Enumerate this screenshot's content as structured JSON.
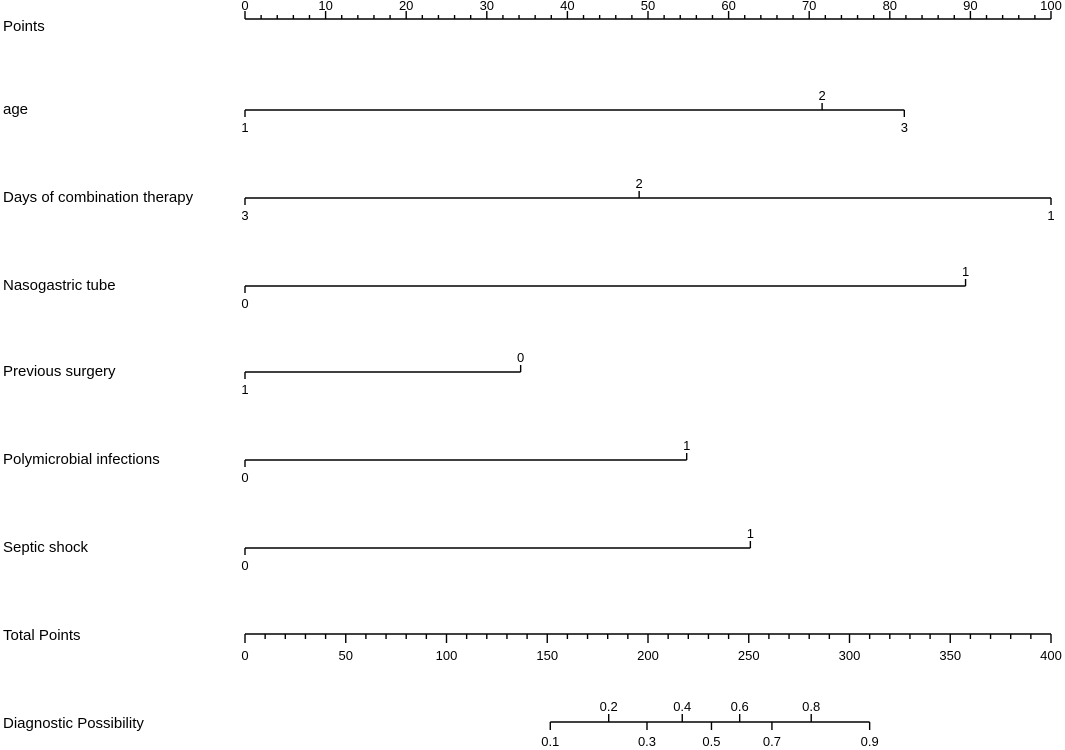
{
  "chart_data": {
    "type": "nomogram",
    "points_scale": {
      "label": "Points",
      "min": 0,
      "max": 100,
      "major": [
        0,
        10,
        20,
        30,
        40,
        50,
        60,
        70,
        80,
        90,
        100
      ],
      "minor_step": 2
    },
    "variables": [
      {
        "label": "age",
        "levels": [
          {
            "label": "1",
            "points": 0,
            "pos": "below"
          },
          {
            "label": "2",
            "points": 71.6,
            "pos": "above"
          },
          {
            "label": "3",
            "points": 81.8,
            "pos": "below"
          }
        ]
      },
      {
        "label": "Days of combination therapy",
        "levels": [
          {
            "label": "3",
            "points": 0,
            "pos": "below"
          },
          {
            "label": "2",
            "points": 48.9,
            "pos": "above"
          },
          {
            "label": "1",
            "points": 100,
            "pos": "below"
          }
        ]
      },
      {
        "label": "Nasogastric tube",
        "levels": [
          {
            "label": "0",
            "points": 0,
            "pos": "below"
          },
          {
            "label": "1",
            "points": 89.4,
            "pos": "above"
          }
        ]
      },
      {
        "label": "Previous surgery",
        "levels": [
          {
            "label": "1",
            "points": 0,
            "pos": "below"
          },
          {
            "label": "0",
            "points": 34.2,
            "pos": "above"
          }
        ]
      },
      {
        "label": "Polymicrobial infections",
        "levels": [
          {
            "label": "0",
            "points": 0,
            "pos": "below"
          },
          {
            "label": "1",
            "points": 54.8,
            "pos": "above"
          }
        ]
      },
      {
        "label": "Septic shock",
        "levels": [
          {
            "label": "0",
            "points": 0,
            "pos": "below"
          },
          {
            "label": "1",
            "points": 62.7,
            "pos": "above"
          }
        ]
      }
    ],
    "total_points": {
      "label": "Total Points",
      "min": 0,
      "max": 400,
      "major": [
        0,
        50,
        100,
        150,
        200,
        250,
        300,
        350,
        400
      ],
      "minor_step": 10
    },
    "probability": {
      "label": "Diagnostic Possibility",
      "ticks": [
        {
          "label": "0.1",
          "total": 151.5,
          "pos": "below"
        },
        {
          "label": "0.2",
          "total": 180.5,
          "pos": "above"
        },
        {
          "label": "0.3",
          "total": 199.5,
          "pos": "below"
        },
        {
          "label": "0.4",
          "total": 217.0,
          "pos": "above"
        },
        {
          "label": "0.5",
          "total": 231.5,
          "pos": "below"
        },
        {
          "label": "0.6",
          "total": 245.5,
          "pos": "above"
        },
        {
          "label": "0.7",
          "total": 261.5,
          "pos": "below"
        },
        {
          "label": "0.8",
          "total": 281.0,
          "pos": "above"
        },
        {
          "label": "0.9",
          "total": 310.0,
          "pos": "below"
        }
      ]
    }
  }
}
